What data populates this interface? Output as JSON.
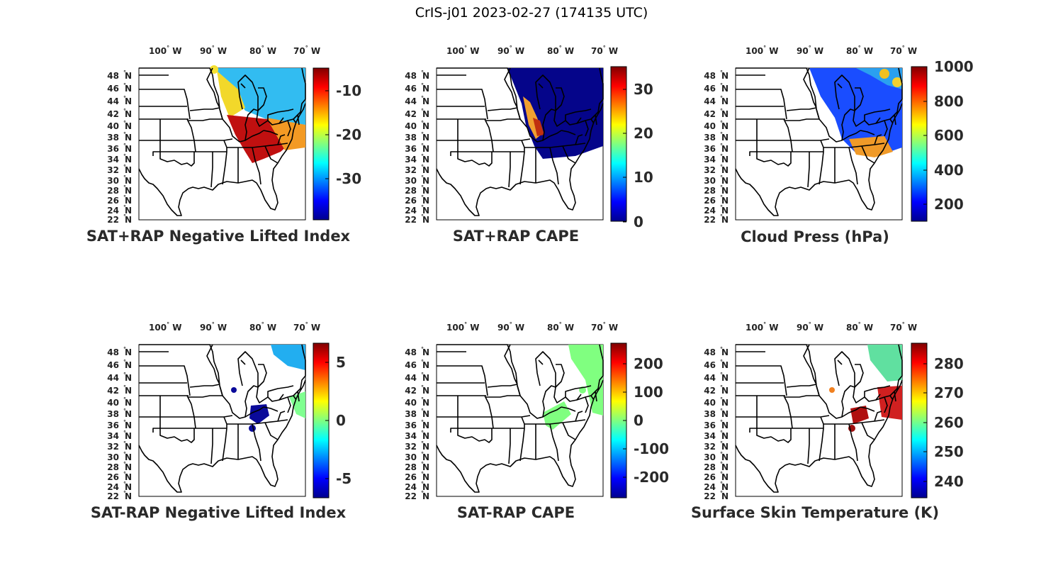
{
  "figure_title": "CrIS-j01 2023-02-27 (174135 UTC)",
  "lon_ticks": [
    "100",
    "90",
    "80",
    "70"
  ],
  "lon_hemi": "W",
  "lat_ticks": [
    "48",
    "46",
    "44",
    "42",
    "40",
    "38",
    "36",
    "34",
    "32",
    "30",
    "28",
    "26",
    "24",
    "22"
  ],
  "lat_hemi": "N",
  "degree_symbol": "°",
  "panels": [
    {
      "id": "p1",
      "title": "SAT+RAP Negative Lifted Index",
      "colorbar_ticks": [
        "-10",
        "-20",
        "-30"
      ]
    },
    {
      "id": "p2",
      "title": "SAT+RAP CAPE",
      "colorbar_ticks": [
        "30",
        "20",
        "10",
        "0"
      ]
    },
    {
      "id": "p3",
      "title": "Cloud Press (hPa)",
      "colorbar_ticks": [
        "1000",
        "800",
        "600",
        "400",
        "200"
      ]
    },
    {
      "id": "p4",
      "title": "SAT-RAP Negative Lifted Index",
      "colorbar_ticks": [
        "5",
        "0",
        "-5"
      ]
    },
    {
      "id": "p5",
      "title": "SAT-RAP CAPE",
      "colorbar_ticks": [
        "200",
        "100",
        "0",
        "-100",
        "-200"
      ]
    },
    {
      "id": "p6",
      "title": "Surface Skin Temperature (K)",
      "colorbar_ticks": [
        "280",
        "270",
        "260",
        "250",
        "240"
      ]
    }
  ],
  "colormap": [
    "#00008f",
    "#0000ff",
    "#0080ff",
    "#00ffff",
    "#80ff80",
    "#ffff00",
    "#ff8000",
    "#ff0000",
    "#800000"
  ]
}
